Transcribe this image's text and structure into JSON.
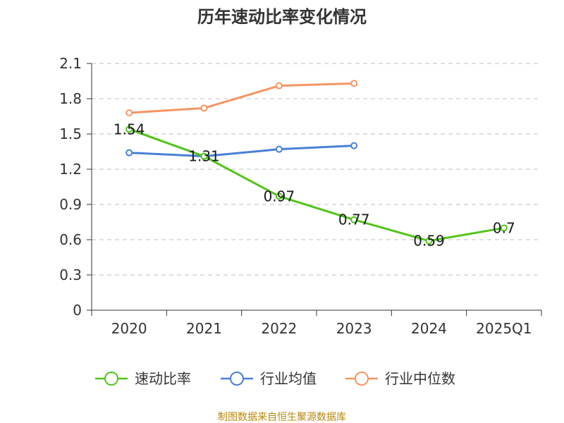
{
  "chart_data": {
    "type": "line",
    "title": "历年速动比率变化情况",
    "categories": [
      "2020",
      "2021",
      "2022",
      "2023",
      "2024",
      "2025Q1"
    ],
    "y_ticks": [
      "0",
      "0.3",
      "0.6",
      "0.9",
      "1.2",
      "1.5",
      "1.8",
      "2.1"
    ],
    "ylim": [
      0,
      2.1
    ],
    "grid": true,
    "legend_position": "bottom",
    "series": [
      {
        "name": "速动比率",
        "color": "#52c41a",
        "values": [
          1.54,
          1.31,
          0.97,
          0.77,
          0.59,
          0.7
        ],
        "labels": [
          "1.54",
          "1.31",
          "0.97",
          "0.77",
          "0.59",
          "0.7"
        ],
        "show_labels": true
      },
      {
        "name": "行业均值",
        "color": "#4a7fd6",
        "values": [
          1.34,
          1.31,
          1.37,
          1.4,
          null,
          null
        ],
        "show_labels": false
      },
      {
        "name": "行业中位数",
        "color": "#f59563",
        "values": [
          1.68,
          1.72,
          1.91,
          1.93,
          null,
          null
        ],
        "show_labels": false
      }
    ]
  },
  "source": {
    "text": "制图数据来自恒生聚源数据库",
    "color": "#b8860b"
  }
}
